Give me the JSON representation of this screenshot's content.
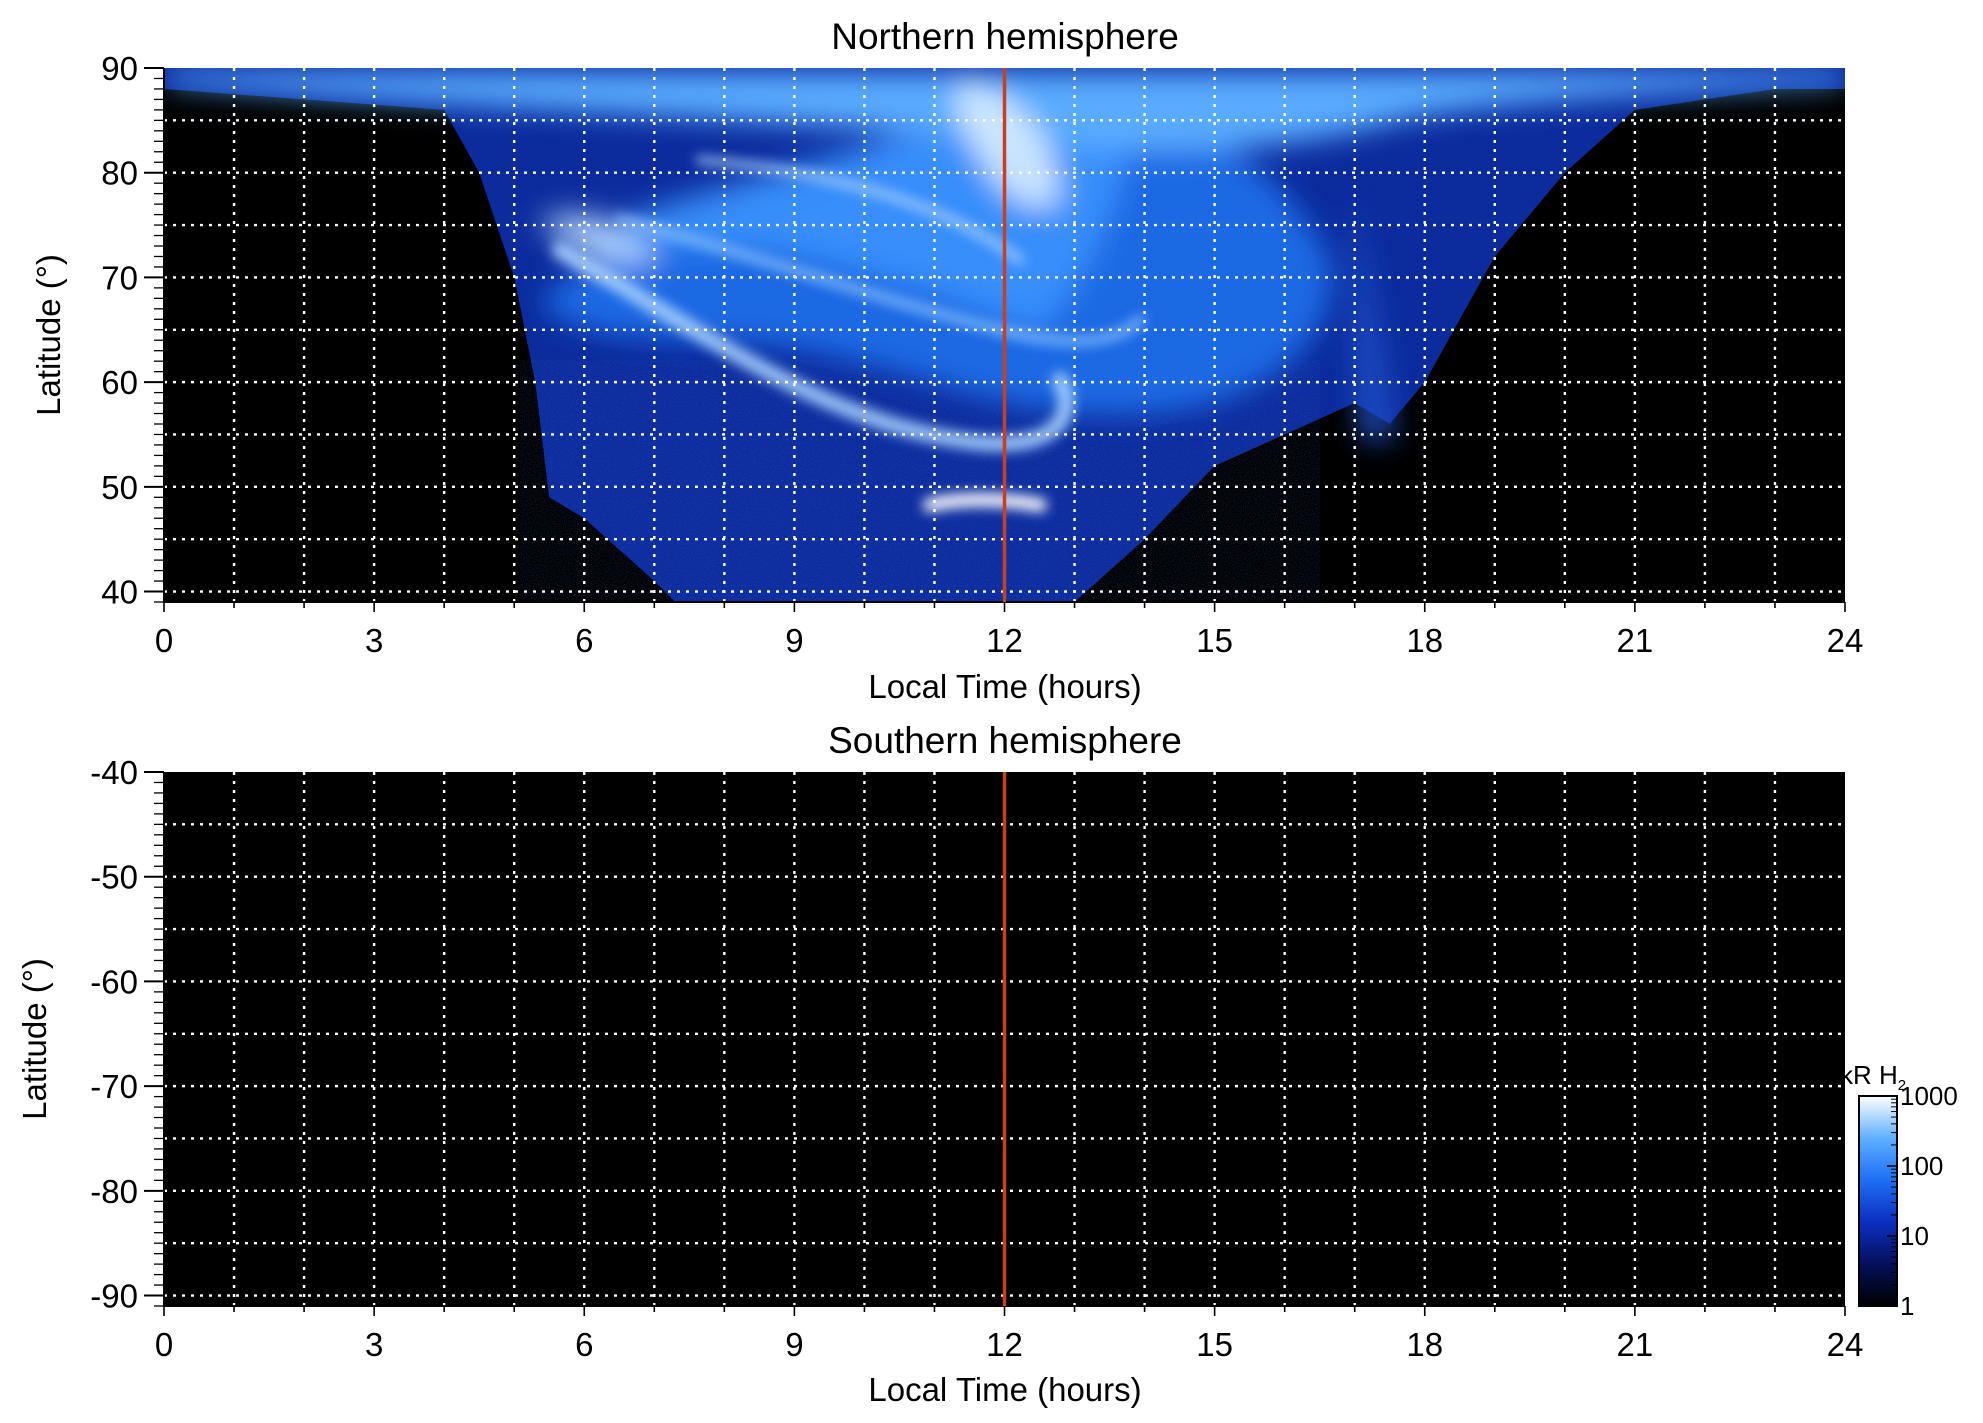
{
  "chart_data": [
    {
      "type": "heatmap",
      "title": "Northern hemisphere",
      "xlabel": "Local Time (hours)",
      "ylabel": "Latitude (°)",
      "xlim": [
        0,
        24
      ],
      "ylim": [
        39,
        90
      ],
      "x_ticks": [
        "0",
        "3",
        "6",
        "9",
        "12",
        "15",
        "18",
        "21",
        "24"
      ],
      "y_ticks": [
        "40",
        "50",
        "60",
        "70",
        "80",
        "90"
      ],
      "grid": true,
      "marker_line": {
        "x": 12,
        "color": "#c8401e"
      },
      "observed_region": {
        "description": "auroral emission map",
        "boundary_local_time": [
          0,
          2,
          4,
          4.5,
          5,
          5.3,
          5.5,
          6,
          7,
          7.3,
          8,
          9,
          10,
          11,
          12,
          13,
          14,
          15,
          16,
          17,
          17.5,
          18,
          19,
          20,
          21,
          22,
          23,
          24
        ],
        "boundary_min_latitude": [
          88,
          87,
          86,
          80,
          70,
          60,
          49,
          47,
          41,
          39,
          39,
          39,
          39,
          39,
          39,
          39,
          45,
          52,
          55,
          58,
          56,
          60,
          72,
          80,
          86,
          87,
          88,
          88
        ],
        "bright_arc_peak_kR": 1000
      }
    },
    {
      "type": "heatmap",
      "title": "Southern hemisphere",
      "xlabel": "Local Time (hours)",
      "ylabel": "Latitude (°)",
      "xlim": [
        0,
        24
      ],
      "ylim": [
        -91,
        -40
      ],
      "x_ticks": [
        "0",
        "3",
        "6",
        "9",
        "12",
        "15",
        "18",
        "21",
        "24"
      ],
      "y_ticks": [
        "-40",
        "-50",
        "-60",
        "-70",
        "-80",
        "-90"
      ],
      "grid": true,
      "marker_line": {
        "x": 12,
        "color": "#c8401e"
      },
      "observed_region": null
    }
  ],
  "colorbar": {
    "label_main": "kR H",
    "label_sub": "2",
    "scale": "log",
    "range": [
      1,
      1000
    ],
    "tick_labels": [
      "1",
      "10",
      "100",
      "1000"
    ],
    "tick_values": [
      1,
      10,
      100,
      1000
    ],
    "colormap": [
      "#000000",
      "#04105a",
      "#0b2fc0",
      "#1e6ef4",
      "#5fb0ff",
      "#ffffff"
    ]
  }
}
